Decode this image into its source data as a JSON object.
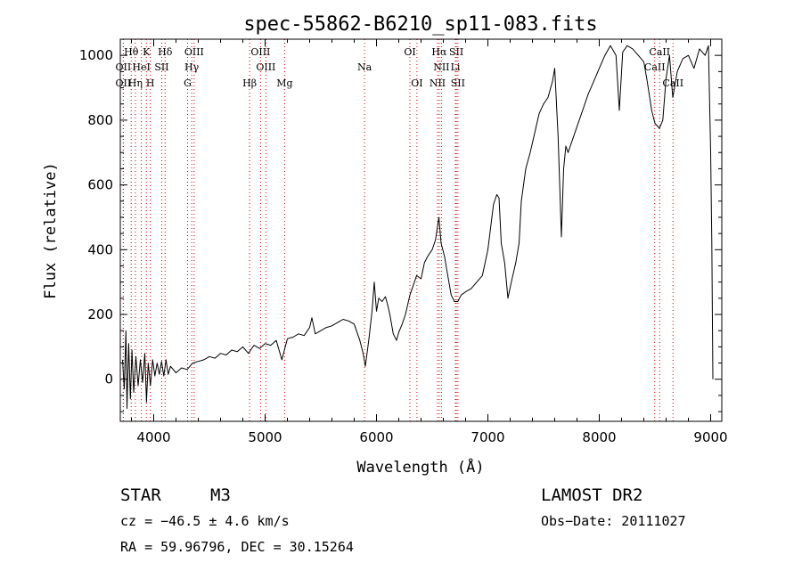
{
  "chart_data": {
    "type": "line",
    "title": "spec-55862-B6210_sp11-083.fits",
    "xlabel": "Wavelength (Å)",
    "ylabel": "Flux (relative)",
    "xlim": [
      3700,
      9100
    ],
    "ylim": [
      -130,
      1050
    ],
    "x_ticks": [
      4000,
      5000,
      6000,
      7000,
      8000,
      9000
    ],
    "y_ticks": [
      0,
      200,
      400,
      600,
      800,
      1000
    ],
    "grid": false,
    "line_color": "#000000",
    "marker_color": "#cc0000",
    "spectral_lines": [
      {
        "label": "Hθ",
        "x": 3798,
        "row": 1
      },
      {
        "label": "K",
        "x": 3934,
        "row": 1
      },
      {
        "label": "Hδ",
        "x": 4102,
        "row": 1
      },
      {
        "label": "OIII",
        "x": 4363,
        "row": 1
      },
      {
        "label": "OIII",
        "x": 4959,
        "row": 1
      },
      {
        "label": "OI",
        "x": 6300,
        "row": 1
      },
      {
        "label": "Hα",
        "x": 6563,
        "row": 1
      },
      {
        "label": "SII",
        "x": 6717,
        "row": 1
      },
      {
        "label": "CaII",
        "x": 8542,
        "row": 1
      },
      {
        "label": "OII",
        "x": 3727,
        "row": 2
      },
      {
        "label": "HeI",
        "x": 3889,
        "row": 2
      },
      {
        "label": "SII",
        "x": 4072,
        "row": 2
      },
      {
        "label": "Hγ",
        "x": 4341,
        "row": 2
      },
      {
        "label": "OIII",
        "x": 5007,
        "row": 2
      },
      {
        "label": "Na",
        "x": 5893,
        "row": 2
      },
      {
        "label": "NII",
        "x": 6583,
        "row": 2
      },
      {
        "label": "Li",
        "x": 6708,
        "row": 2
      },
      {
        "label": "CaII",
        "x": 8498,
        "row": 2
      },
      {
        "label": "OII",
        "x": 3727,
        "row": 3
      },
      {
        "label": "Hη",
        "x": 3835,
        "row": 3
      },
      {
        "label": "H",
        "x": 3969,
        "row": 3
      },
      {
        "label": "G",
        "x": 4304,
        "row": 3
      },
      {
        "label": "Hβ",
        "x": 4861,
        "row": 3
      },
      {
        "label": "Mg",
        "x": 5175,
        "row": 3
      },
      {
        "label": "OI",
        "x": 6363,
        "row": 3
      },
      {
        "label": "NII",
        "x": 6548,
        "row": 3
      },
      {
        "label": "SII",
        "x": 6731,
        "row": 3
      },
      {
        "label": "CaII",
        "x": 8662,
        "row": 3
      }
    ],
    "series": [
      {
        "values": [
          [
            3720,
            60
          ],
          [
            3735,
            -30
          ],
          [
            3750,
            150
          ],
          [
            3760,
            -90
          ],
          [
            3775,
            110
          ],
          [
            3790,
            -60
          ],
          [
            3805,
            90
          ],
          [
            3820,
            -40
          ],
          [
            3840,
            70
          ],
          [
            3860,
            -20
          ],
          [
            3880,
            60
          ],
          [
            3900,
            -10
          ],
          [
            3920,
            80
          ],
          [
            3935,
            -70
          ],
          [
            3950,
            50
          ],
          [
            3970,
            -20
          ],
          [
            3990,
            60
          ],
          [
            4010,
            10
          ],
          [
            4030,
            50
          ],
          [
            4050,
            15
          ],
          [
            4070,
            55
          ],
          [
            4090,
            10
          ],
          [
            4110,
            60
          ],
          [
            4130,
            15
          ],
          [
            4150,
            40
          ],
          [
            4200,
            20
          ],
          [
            4250,
            35
          ],
          [
            4300,
            30
          ],
          [
            4350,
            50
          ],
          [
            4400,
            55
          ],
          [
            4450,
            60
          ],
          [
            4500,
            70
          ],
          [
            4550,
            65
          ],
          [
            4600,
            80
          ],
          [
            4650,
            75
          ],
          [
            4700,
            90
          ],
          [
            4750,
            85
          ],
          [
            4800,
            100
          ],
          [
            4850,
            80
          ],
          [
            4900,
            105
          ],
          [
            4950,
            95
          ],
          [
            5000,
            110
          ],
          [
            5050,
            105
          ],
          [
            5100,
            120
          ],
          [
            5150,
            60
          ],
          [
            5200,
            125
          ],
          [
            5250,
            130
          ],
          [
            5300,
            140
          ],
          [
            5350,
            135
          ],
          [
            5400,
            160
          ],
          [
            5420,
            190
          ],
          [
            5450,
            140
          ],
          [
            5500,
            150
          ],
          [
            5550,
            160
          ],
          [
            5600,
            165
          ],
          [
            5650,
            175
          ],
          [
            5700,
            185
          ],
          [
            5750,
            180
          ],
          [
            5800,
            170
          ],
          [
            5850,
            120
          ],
          [
            5880,
            80
          ],
          [
            5900,
            40
          ],
          [
            5930,
            120
          ],
          [
            5960,
            210
          ],
          [
            5980,
            300
          ],
          [
            6000,
            210
          ],
          [
            6020,
            250
          ],
          [
            6050,
            240
          ],
          [
            6080,
            255
          ],
          [
            6100,
            230
          ],
          [
            6120,
            200
          ],
          [
            6150,
            140
          ],
          [
            6180,
            120
          ],
          [
            6200,
            145
          ],
          [
            6230,
            170
          ],
          [
            6260,
            200
          ],
          [
            6300,
            260
          ],
          [
            6330,
            290
          ],
          [
            6360,
            320
          ],
          [
            6400,
            310
          ],
          [
            6430,
            360
          ],
          [
            6460,
            380
          ],
          [
            6500,
            400
          ],
          [
            6530,
            430
          ],
          [
            6560,
            500
          ],
          [
            6580,
            420
          ],
          [
            6610,
            380
          ],
          [
            6640,
            320
          ],
          [
            6670,
            260
          ],
          [
            6700,
            240
          ],
          [
            6730,
            240
          ],
          [
            6760,
            260
          ],
          [
            6800,
            270
          ],
          [
            6850,
            280
          ],
          [
            6900,
            300
          ],
          [
            6950,
            320
          ],
          [
            7000,
            400
          ],
          [
            7050,
            540
          ],
          [
            7080,
            570
          ],
          [
            7100,
            560
          ],
          [
            7120,
            420
          ],
          [
            7150,
            360
          ],
          [
            7180,
            250
          ],
          [
            7210,
            300
          ],
          [
            7250,
            360
          ],
          [
            7280,
            420
          ],
          [
            7300,
            550
          ],
          [
            7340,
            650
          ],
          [
            7380,
            700
          ],
          [
            7420,
            760
          ],
          [
            7460,
            820
          ],
          [
            7500,
            850
          ],
          [
            7540,
            870
          ],
          [
            7580,
            920
          ],
          [
            7600,
            960
          ],
          [
            7630,
            750
          ],
          [
            7660,
            440
          ],
          [
            7680,
            650
          ],
          [
            7700,
            720
          ],
          [
            7720,
            700
          ],
          [
            7760,
            740
          ],
          [
            7800,
            780
          ],
          [
            7850,
            830
          ],
          [
            7900,
            880
          ],
          [
            7950,
            920
          ],
          [
            8000,
            960
          ],
          [
            8050,
            1000
          ],
          [
            8100,
            1030
          ],
          [
            8150,
            1000
          ],
          [
            8180,
            830
          ],
          [
            8210,
            1010
          ],
          [
            8250,
            1030
          ],
          [
            8300,
            1020
          ],
          [
            8350,
            1000
          ],
          [
            8400,
            980
          ],
          [
            8430,
            920
          ],
          [
            8470,
            830
          ],
          [
            8500,
            790
          ],
          [
            8540,
            775
          ],
          [
            8570,
            800
          ],
          [
            8600,
            930
          ],
          [
            8630,
            1000
          ],
          [
            8660,
            870
          ],
          [
            8700,
            950
          ],
          [
            8750,
            990
          ],
          [
            8800,
            1000
          ],
          [
            8850,
            960
          ],
          [
            8900,
            1020
          ],
          [
            8950,
            1000
          ],
          [
            8980,
            1030
          ],
          [
            9000,
            700
          ],
          [
            9010,
            420
          ],
          [
            9020,
            0
          ]
        ]
      }
    ]
  },
  "info": {
    "class_label": "STAR",
    "subclass": "M3",
    "survey": "LAMOST DR2",
    "redshift": "cz = −46.5 ± 4.6 km/s",
    "obs_date": "Obs−Date: 20111027",
    "coords": "RA =  59.96796, DEC =  30.15264"
  }
}
